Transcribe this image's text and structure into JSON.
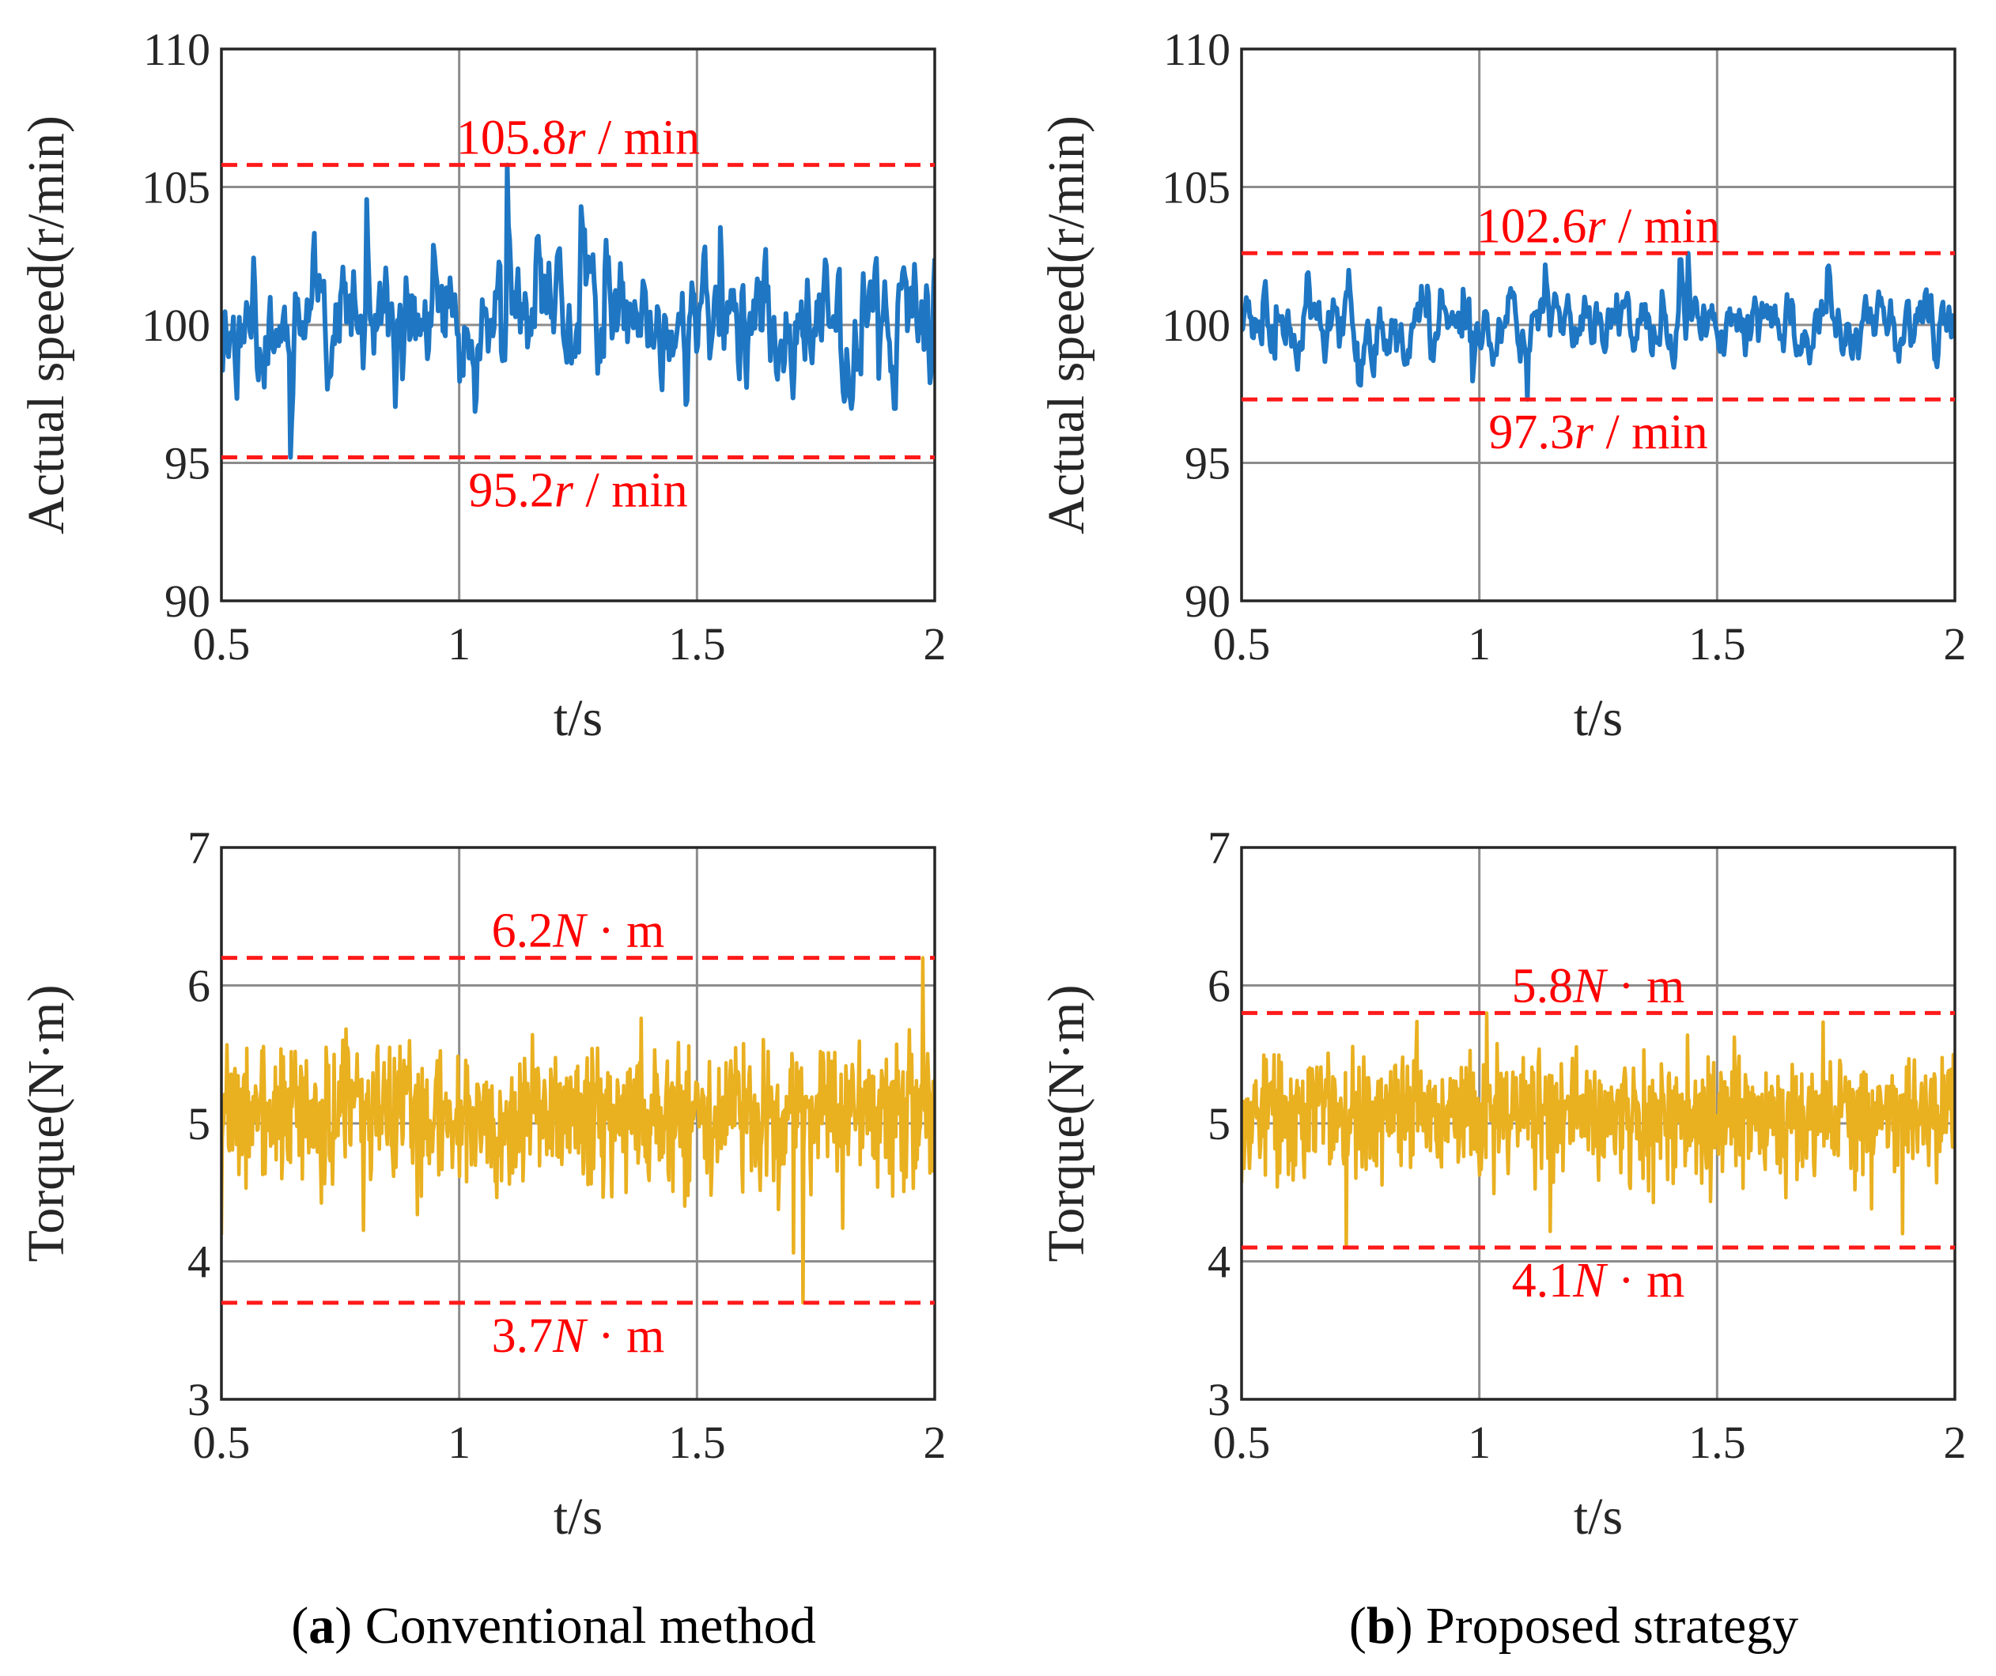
{
  "figure": {
    "captions": [
      {
        "letter": "a",
        "open": "(",
        "close": ")",
        "text": " Conventional method"
      },
      {
        "letter": "b",
        "open": "(",
        "close": ")",
        "text": " Proposed strategy"
      }
    ]
  },
  "colors": {
    "speed_line": "#1f77c4",
    "torque_line": "#e9b020",
    "limit_line": "#ff1a1a",
    "grid": "#8c8c8c",
    "axis": "#262626"
  },
  "chart_data": [
    {
      "type": "line",
      "panel": "a",
      "row": "speed",
      "xlabel": "t/s",
      "ylabel": "Actual speed(r/min)",
      "xlim": [
        0.5,
        2
      ],
      "ylim": [
        90,
        110
      ],
      "xticks": [
        "0.5",
        "1",
        "1.5",
        "2"
      ],
      "xtick_values": [
        0.5,
        1,
        1.5,
        2
      ],
      "yticks": [
        "90",
        "95",
        "100",
        "105",
        "110"
      ],
      "ytick_values": [
        90,
        95,
        100,
        105,
        110
      ],
      "grid": true,
      "signal": {
        "name": "speed",
        "mean": 100,
        "max": 105.8,
        "min": 95.2,
        "samples": 600,
        "seed": 11
      },
      "limits": [
        {
          "value": 105.8,
          "label_num": "105.8",
          "label_var": "r",
          "label_unit": " / min",
          "label_side": "above"
        },
        {
          "value": 95.2,
          "label_num": "95.2",
          "label_var": "r",
          "label_unit": " / min",
          "label_side": "below"
        }
      ]
    },
    {
      "type": "line",
      "panel": "b",
      "row": "speed",
      "xlabel": "t/s",
      "ylabel": "Actual speed(r/min)",
      "xlim": [
        0.5,
        2
      ],
      "ylim": [
        90,
        110
      ],
      "xticks": [
        "0.5",
        "1",
        "1.5",
        "2"
      ],
      "xtick_values": [
        0.5,
        1,
        1.5,
        2
      ],
      "yticks": [
        "90",
        "95",
        "100",
        "105",
        "110"
      ],
      "ytick_values": [
        90,
        95,
        100,
        105,
        110
      ],
      "grid": true,
      "signal": {
        "name": "speed",
        "mean": 100,
        "max": 102.6,
        "min": 97.3,
        "samples": 600,
        "seed": 23
      },
      "limits": [
        {
          "value": 102.6,
          "label_num": "102.6",
          "label_var": "r",
          "label_unit": " / min",
          "label_side": "above"
        },
        {
          "value": 97.3,
          "label_num": "97.3",
          "label_var": "r",
          "label_unit": " / min",
          "label_side": "below"
        }
      ]
    },
    {
      "type": "line",
      "panel": "a",
      "row": "torque",
      "xlabel": "t/s",
      "ylabel": "Torque(N·m)",
      "xlim": [
        0.5,
        2
      ],
      "ylim": [
        3,
        7
      ],
      "xticks": [
        "0.5",
        "1",
        "1.5",
        "2"
      ],
      "xtick_values": [
        0.5,
        1,
        1.5,
        2
      ],
      "yticks": [
        "3",
        "4",
        "5",
        "6",
        "7"
      ],
      "ytick_values": [
        3,
        4,
        5,
        6,
        7
      ],
      "grid": true,
      "signal": {
        "name": "torque",
        "mean": 5.1,
        "max": 6.2,
        "min": 3.7,
        "samples": 900,
        "seed": 37
      },
      "limits": [
        {
          "value": 6.2,
          "label_num": "6.2",
          "label_var": "N",
          "label_unit": " · m",
          "label_side": "above"
        },
        {
          "value": 3.7,
          "label_num": "3.7",
          "label_var": "N",
          "label_unit": " · m",
          "label_side": "below"
        }
      ]
    },
    {
      "type": "line",
      "panel": "b",
      "row": "torque",
      "xlabel": "t/s",
      "ylabel": "Torque(N·m)",
      "xlim": [
        0.5,
        2
      ],
      "ylim": [
        3,
        7
      ],
      "xticks": [
        "0.5",
        "1",
        "1.5",
        "2"
      ],
      "xtick_values": [
        0.5,
        1,
        1.5,
        2
      ],
      "yticks": [
        "3",
        "4",
        "5",
        "6",
        "7"
      ],
      "ytick_values": [
        3,
        4,
        5,
        6,
        7
      ],
      "grid": true,
      "signal": {
        "name": "torque",
        "mean": 5.1,
        "max": 5.8,
        "min": 4.1,
        "samples": 900,
        "seed": 53
      },
      "limits": [
        {
          "value": 5.8,
          "label_num": "5.8",
          "label_var": "N",
          "label_unit": " · m",
          "label_side": "above"
        },
        {
          "value": 4.1,
          "label_num": "4.1",
          "label_var": "N",
          "label_unit": " · m",
          "label_side": "below"
        }
      ]
    }
  ]
}
